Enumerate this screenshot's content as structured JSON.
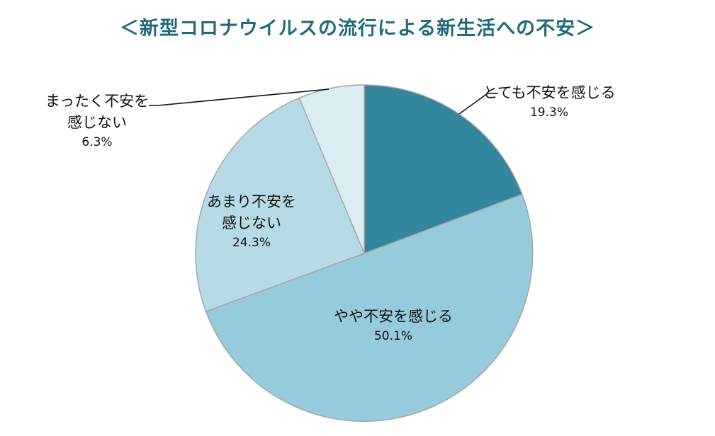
{
  "title": "＜新型コロナウイルスの流行による新生活への不安＞",
  "chart_data": {
    "type": "pie",
    "title": "＜新型コロナウイルスの流行による新生活への不安＞",
    "categories": [
      "とても不安を感じる",
      "やや不安を感じる",
      "あまり不安を感じない",
      "まったく不安を感じない"
    ],
    "values": [
      19.3,
      50.1,
      24.3,
      6.3
    ],
    "value_labels": [
      "19.3%",
      "50.1%",
      "24.3%",
      "6.3%"
    ],
    "label_lines": [
      [
        "とても不安を感じる"
      ],
      [
        "やや不安を感じる"
      ],
      [
        "あまり不安を",
        "感じない"
      ],
      [
        "まったく不安を",
        "感じない"
      ]
    ],
    "colors": [
      "#32869d",
      "#96cbdd",
      "#b6dbe6",
      "#daedf3"
    ],
    "slice_border_color": "#a6a6a6",
    "start": "12 o'clock",
    "direction": "clockwise",
    "legend": "none"
  }
}
